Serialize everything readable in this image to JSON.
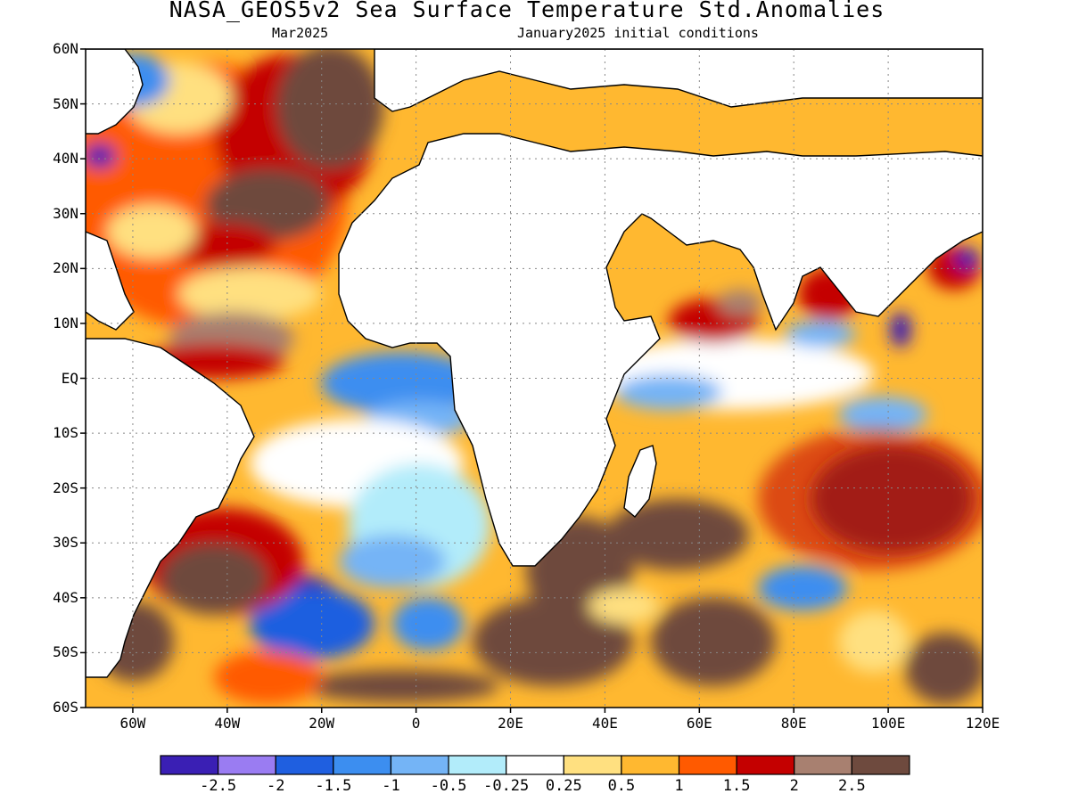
{
  "title": "NASA_GEOS5v2 Sea Surface Temperature Std.Anomalies",
  "subtitle_left": "Mar2025",
  "subtitle_right": "January2025 initial conditions",
  "lat_labels": [
    "60N",
    "50N",
    "40N",
    "30N",
    "20N",
    "10N",
    "EQ",
    "10S",
    "20S",
    "30S",
    "40S",
    "50S",
    "60S"
  ],
  "lon_labels": [
    "60W",
    "40W",
    "20W",
    "0",
    "20E",
    "40E",
    "60E",
    "80E",
    "100E",
    "120E"
  ],
  "colorbar": {
    "colors": [
      "#3a1fb4",
      "#9a7cf2",
      "#1f5fe0",
      "#3c8ef0",
      "#74b4f6",
      "#b2ecfa",
      "#ffffff",
      "#ffe080",
      "#ffb830",
      "#ff5a00",
      "#c40000",
      "#a88070",
      "#6e4a3e"
    ],
    "labels": [
      "-2.5",
      "-2",
      "-1.5",
      "-1",
      "-0.5",
      "-0.25",
      "0.25",
      "0.5",
      "1",
      "1.5",
      "2",
      "2.5"
    ]
  },
  "map_extent": {
    "lon": [
      -70,
      120
    ],
    "lat": [
      -60,
      60
    ]
  },
  "grid": "dotted"
}
